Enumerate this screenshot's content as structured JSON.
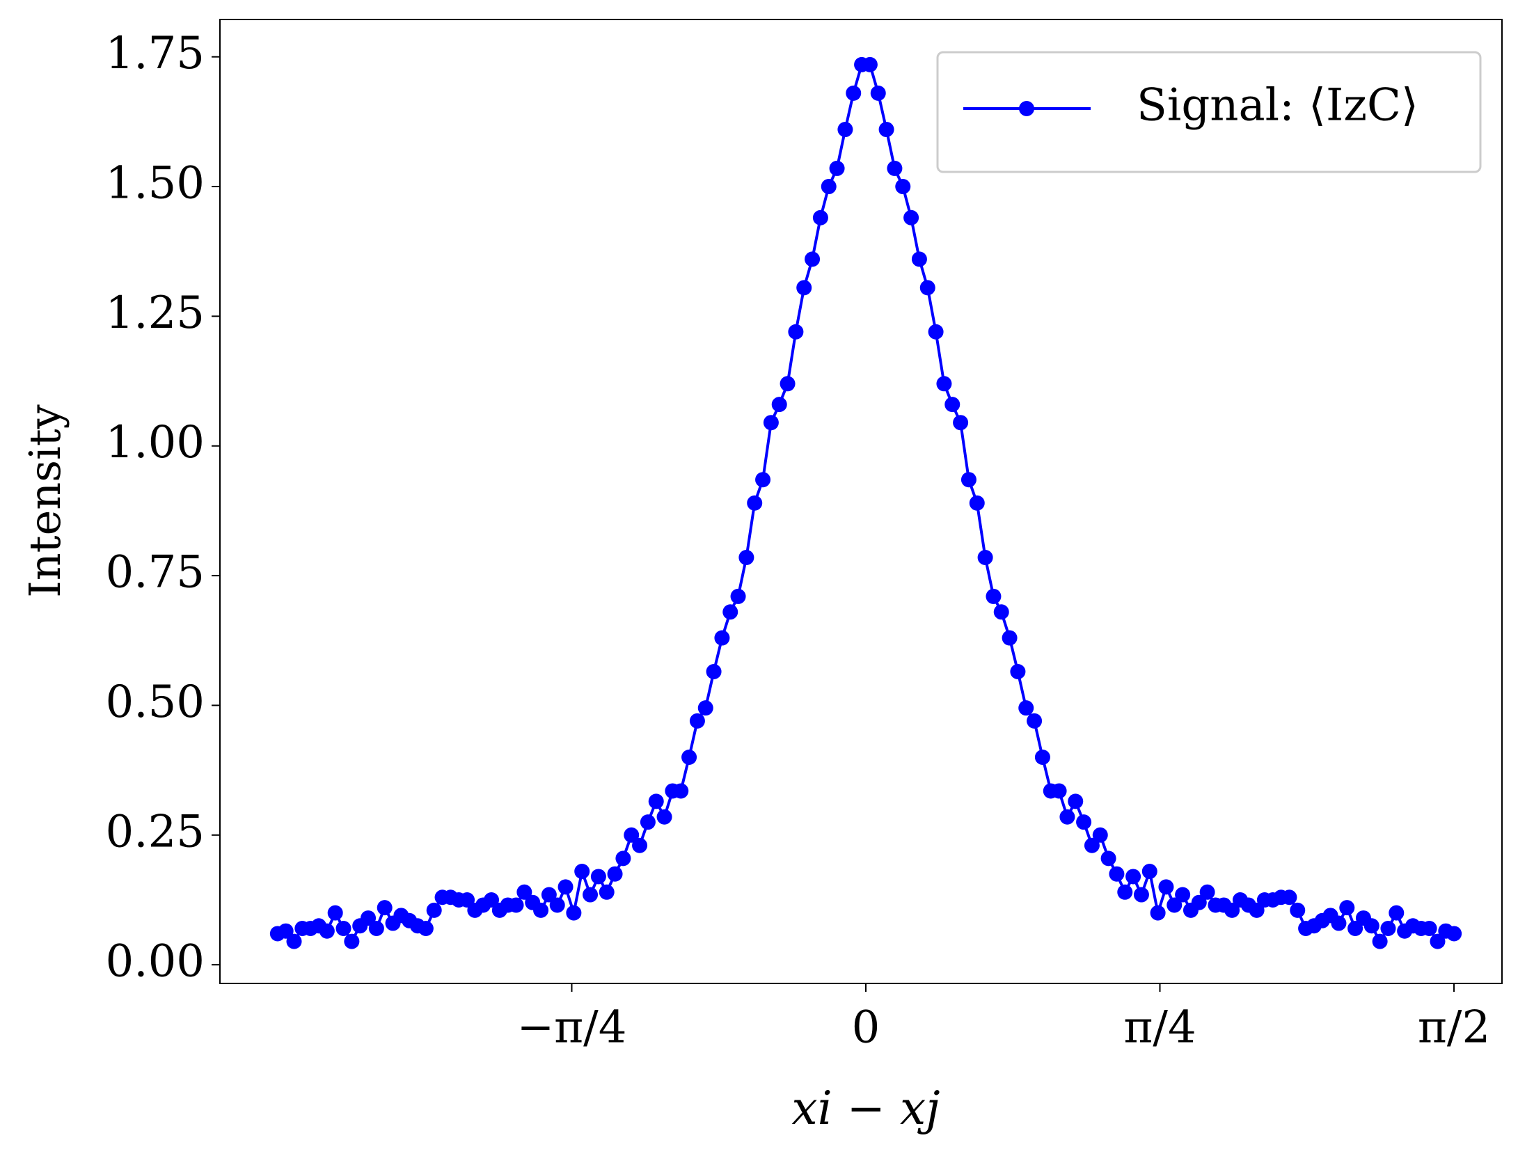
{
  "chart_data": {
    "type": "line",
    "xlabel": "xi − xj",
    "ylabel": "Intensity",
    "xlim": [
      -1.725,
      1.699
    ],
    "ylim": [
      -0.036,
      1.822
    ],
    "xticks": [
      {
        "value": -0.7854,
        "label": "−π/4"
      },
      0,
      {
        "value": 0.7854,
        "label": "π/4"
      },
      {
        "value": 1.5708,
        "label": "π/2"
      }
    ],
    "yticks": [
      {
        "value": 0,
        "label": "0.00"
      },
      0.25,
      {
        "value": 0.5,
        "label": "0.50"
      },
      0.75,
      {
        "value": 1,
        "label": "1.00"
      },
      1.25,
      {
        "value": 1.5,
        "label": "1.50"
      },
      1.75
    ],
    "legend": "upper right",
    "grid": false,
    "x": [
      -1.571,
      -1.549,
      -1.527,
      -1.505,
      -1.483,
      -1.461,
      -1.439,
      -1.417,
      -1.395,
      -1.373,
      -1.351,
      -1.329,
      -1.307,
      -1.285,
      -1.263,
      -1.241,
      -1.219,
      -1.197,
      -1.175,
      -1.153,
      -1.131,
      -1.109,
      -1.087,
      -1.065,
      -1.044,
      -1.022,
      -1.0,
      -0.978,
      -0.956,
      -0.934,
      -0.912,
      -0.89,
      -0.868,
      -0.846,
      -0.824,
      -0.802,
      -0.78,
      -0.758,
      -0.736,
      -0.714,
      -0.692,
      -0.67,
      -0.648,
      -0.626,
      -0.604,
      -0.582,
      -0.56,
      -0.538,
      -0.516,
      -0.494,
      -0.472,
      -0.45,
      -0.428,
      -0.406,
      -0.384,
      -0.362,
      -0.341,
      -0.319,
      -0.297,
      -0.275,
      -0.253,
      -0.231,
      -0.209,
      -0.187,
      -0.165,
      -0.143,
      -0.121,
      -0.099,
      -0.077,
      -0.055,
      -0.033,
      -0.011,
      0.011,
      0.033,
      0.055,
      0.077,
      0.099,
      0.121,
      0.143,
      0.165,
      0.187,
      0.209,
      0.231,
      0.253,
      0.275,
      0.297,
      0.319,
      0.341,
      0.362,
      0.384,
      0.406,
      0.428,
      0.45,
      0.472,
      0.494,
      0.516,
      0.538,
      0.56,
      0.582,
      0.604,
      0.626,
      0.648,
      0.67,
      0.692,
      0.714,
      0.736,
      0.758,
      0.78,
      0.802,
      0.824,
      0.846,
      0.868,
      0.89,
      0.912,
      0.934,
      0.956,
      0.978,
      1.0,
      1.022,
      1.044,
      1.065,
      1.087,
      1.109,
      1.131,
      1.153,
      1.175,
      1.197,
      1.219,
      1.241,
      1.263,
      1.285,
      1.307,
      1.329,
      1.351,
      1.373,
      1.395,
      1.417,
      1.439,
      1.461,
      1.483,
      1.505,
      1.527,
      1.549,
      1.571
    ],
    "series": [
      {
        "name": "Signal: ⟨IzC⟩",
        "color": "#0000ff",
        "values": [
          0.06,
          0.065,
          0.045,
          0.07,
          0.07,
          0.075,
          0.065,
          0.1,
          0.07,
          0.045,
          0.075,
          0.09,
          0.07,
          0.11,
          0.08,
          0.095,
          0.085,
          0.075,
          0.07,
          0.105,
          0.13,
          0.13,
          0.125,
          0.125,
          0.105,
          0.115,
          0.125,
          0.105,
          0.115,
          0.115,
          0.14,
          0.12,
          0.105,
          0.135,
          0.115,
          0.15,
          0.1,
          0.18,
          0.135,
          0.17,
          0.14,
          0.175,
          0.205,
          0.25,
          0.23,
          0.275,
          0.315,
          0.285,
          0.335,
          0.335,
          0.4,
          0.47,
          0.495,
          0.565,
          0.63,
          0.68,
          0.71,
          0.785,
          0.89,
          0.935,
          1.045,
          1.08,
          1.12,
          1.22,
          1.305,
          1.36,
          1.44,
          1.5,
          1.535,
          1.61,
          1.68,
          1.735,
          1.735,
          1.68,
          1.61,
          1.535,
          1.5,
          1.44,
          1.36,
          1.305,
          1.22,
          1.12,
          1.08,
          1.045,
          0.935,
          0.89,
          0.785,
          0.71,
          0.68,
          0.63,
          0.565,
          0.495,
          0.47,
          0.4,
          0.335,
          0.335,
          0.285,
          0.315,
          0.275,
          0.23,
          0.25,
          0.205,
          0.175,
          0.14,
          0.17,
          0.135,
          0.18,
          0.1,
          0.15,
          0.115,
          0.135,
          0.105,
          0.12,
          0.14,
          0.115,
          0.115,
          0.105,
          0.125,
          0.115,
          0.105,
          0.125,
          0.125,
          0.13,
          0.13,
          0.105,
          0.07,
          0.075,
          0.085,
          0.095,
          0.08,
          0.11,
          0.07,
          0.09,
          0.075,
          0.045,
          0.07,
          0.1,
          0.065,
          0.075,
          0.07,
          0.07,
          0.045,
          0.065,
          0.06
        ]
      }
    ]
  }
}
